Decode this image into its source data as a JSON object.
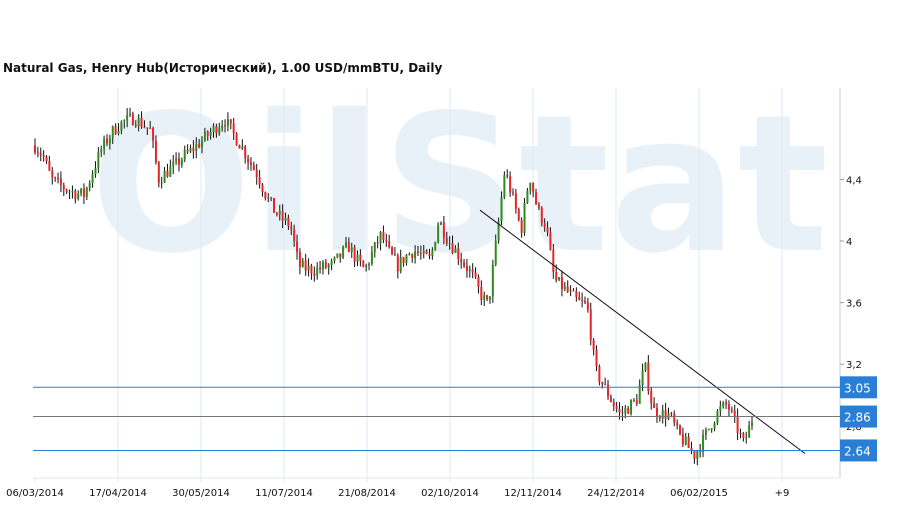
{
  "chart_data": {
    "type": "candlestick",
    "title": "Natural Gas, Henry Hub(Исторический), 1.00 USD/mmBTU, Daily",
    "watermark": "OilStat",
    "x_ticks": [
      "06/03/2014",
      "17/04/2014",
      "30/05/2014",
      "11/07/2014",
      "21/08/2014",
      "02/10/2014",
      "12/11/2014",
      "24/12/2014",
      "06/02/2015",
      "+9"
    ],
    "y_ticks": [
      4.4,
      4,
      3.6,
      3.2,
      2.8
    ],
    "y_tick_labels": [
      "4,4",
      "4",
      "3,6",
      "3,2",
      "2,8"
    ],
    "ylim": [
      2.46,
      4.98
    ],
    "grid": "vertical",
    "close_path": [
      4.62,
      4.55,
      4.4,
      4.36,
      4.33,
      4.31,
      4.3,
      4.45,
      4.59,
      4.68,
      4.75,
      4.78,
      4.8,
      4.76,
      4.72,
      4.4,
      4.45,
      4.49,
      4.55,
      4.59,
      4.64,
      4.69,
      4.74,
      4.79,
      4.7,
      4.62,
      4.52,
      4.43,
      4.3,
      4.2,
      4.14,
      4.1,
      3.84,
      3.82,
      3.81,
      3.83,
      3.84,
      3.9,
      3.97,
      3.88,
      3.81,
      3.93,
      4.04,
      3.92,
      3.84,
      3.9,
      3.94,
      3.9,
      3.88,
      4.14,
      4.02,
      3.94,
      3.86,
      3.78,
      3.66,
      3.58,
      4.01,
      4.46,
      4.27,
      4.07,
      4.43,
      4.2,
      4.1,
      3.75,
      3.7,
      3.65,
      3.6,
      3.58,
      3.16,
      3.06,
      2.96,
      2.87,
      2.92,
      2.97,
      3.19,
      2.9,
      2.88,
      2.87,
      2.75,
      2.68,
      2.61,
      2.7,
      2.81,
      2.9,
      2.94,
      2.81,
      2.68,
      2.84
    ],
    "trend_line": {
      "from": 4.2,
      "to": 2.62
    },
    "levels": [
      {
        "value": 3.05,
        "label": "3.05",
        "color": "#2a7fd4"
      },
      {
        "value": 2.86,
        "label": "2.86",
        "color": "#777777"
      },
      {
        "value": 2.64,
        "label": "2.64",
        "color": "#2a7fd4"
      }
    ],
    "colors": {
      "up": "#2e8b1e",
      "down": "#e8232a",
      "label_bg": "#2a7fd4",
      "grid": "#dce9f5"
    }
  }
}
